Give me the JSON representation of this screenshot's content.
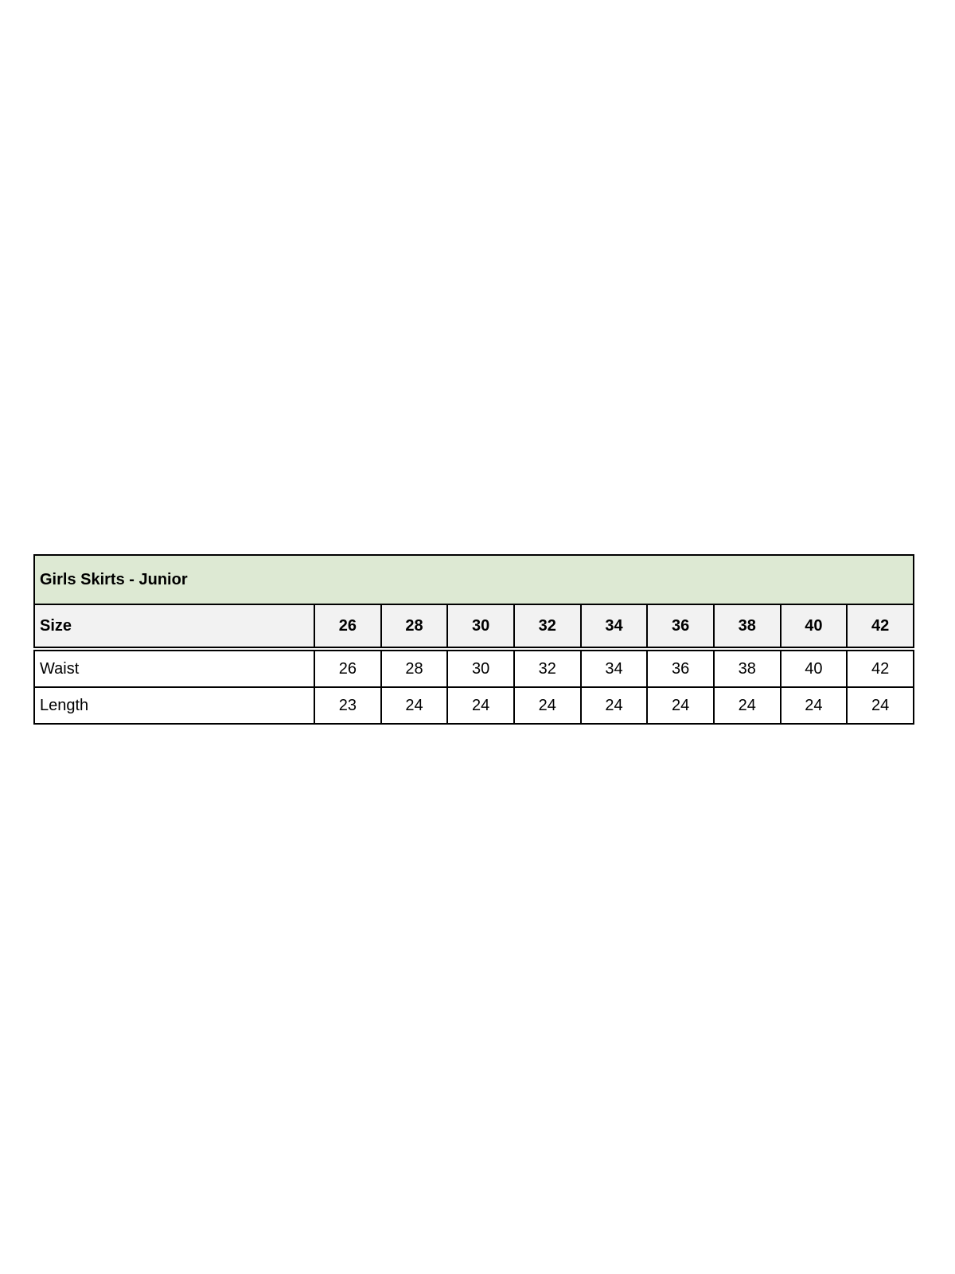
{
  "colors": {
    "title_bg": "#dde9d3",
    "header_bg": "#f2f2f2",
    "border": "#000000",
    "text": "#000000"
  },
  "table": {
    "title": "Girls Skirts - Junior",
    "header": {
      "label": "Size",
      "values": [
        "26",
        "28",
        "30",
        "32",
        "34",
        "36",
        "38",
        "40",
        "42"
      ]
    },
    "rows": [
      {
        "label": "Waist",
        "values": [
          "26",
          "28",
          "30",
          "32",
          "34",
          "36",
          "38",
          "40",
          "42"
        ]
      },
      {
        "label": "Length",
        "values": [
          "23",
          "24",
          "24",
          "24",
          "24",
          "24",
          "24",
          "24",
          "24"
        ]
      }
    ]
  }
}
